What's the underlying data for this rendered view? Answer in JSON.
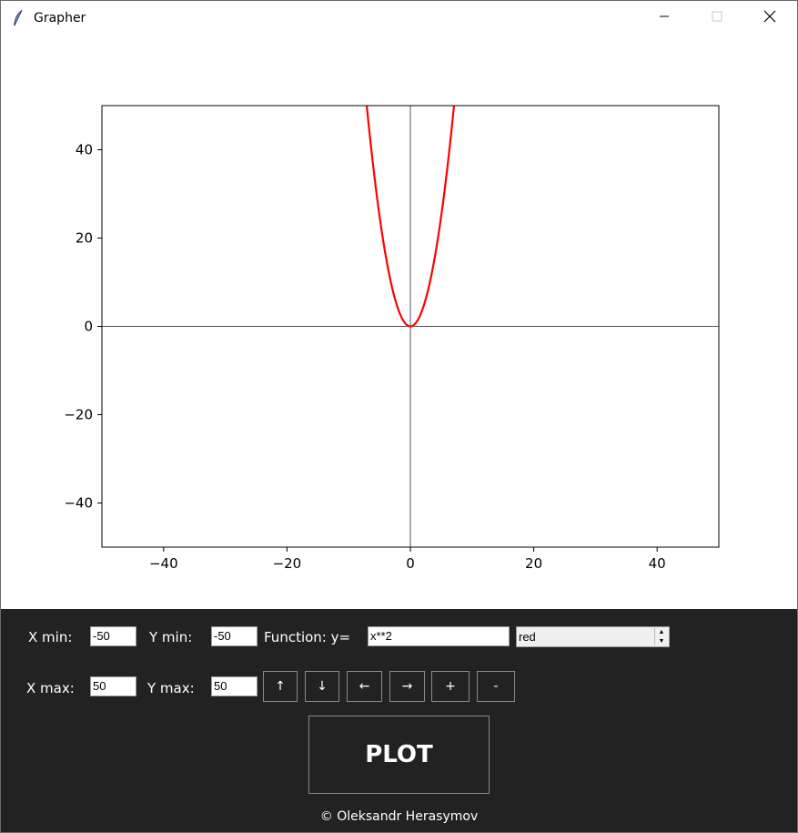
{
  "window": {
    "title": "Grapher",
    "app_icon": "feather-icon",
    "controls": [
      "minimize-icon",
      "maximize-icon",
      "close-icon"
    ]
  },
  "chart_data": {
    "type": "line",
    "function": "x**2",
    "series": [
      {
        "color": "#ff0000",
        "x": [
          -7.07,
          -6,
          -5,
          -4,
          -3,
          -2,
          -1,
          0,
          1,
          2,
          3,
          4,
          5,
          6,
          7.07
        ],
        "y": [
          50,
          36,
          25,
          16,
          9,
          4,
          1,
          0,
          1,
          4,
          9,
          16,
          25,
          36,
          50
        ]
      }
    ],
    "xlim": [
      -50,
      50
    ],
    "ylim": [
      -50,
      50
    ],
    "xticks": [
      -40,
      -20,
      0,
      20,
      40
    ],
    "yticks": [
      -40,
      -20,
      0,
      20,
      40
    ],
    "xtick_labels": [
      "−40",
      "−20",
      "0",
      "20",
      "40"
    ],
    "ytick_labels": [
      "−40",
      "−20",
      "0",
      "20",
      "40"
    ],
    "axes_lines": true,
    "grid": false
  },
  "controls": {
    "xmin_label": "X min:",
    "xmin_value": "-50",
    "ymin_label": "Y min:",
    "ymin_value": "-50",
    "function_label": "Function: y=",
    "function_value": "x**2",
    "color_value": "red",
    "xmax_label": "X max:",
    "xmax_value": "50",
    "ymax_label": "Y max:",
    "ymax_value": "50",
    "nav_buttons": {
      "up": "↑",
      "down": "↓",
      "left": "←",
      "right": "→",
      "zoom_in": "+",
      "zoom_out": "-"
    },
    "plot_label": "PLOT"
  },
  "footer": "© Oleksandr Herasymov",
  "colors": {
    "panel_bg": "#222222",
    "curve": "#ff0000"
  }
}
